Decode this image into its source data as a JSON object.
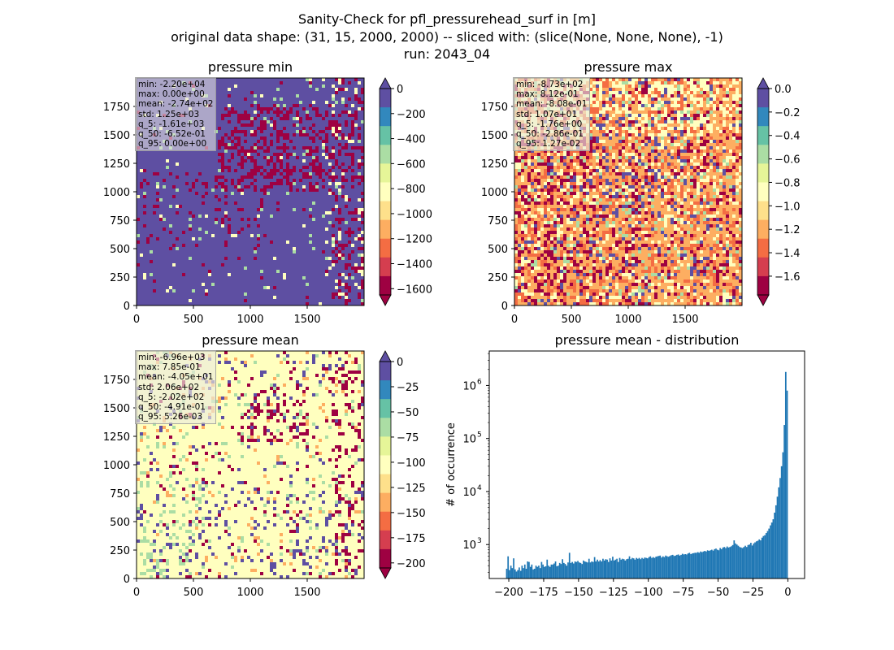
{
  "figure": {
    "title_lines": [
      "Sanity-Check for pfl_pressurehead_surf in [m]",
      "original data shape: (31, 15, 2000, 2000) -- sliced with: (slice(None, None, None), -1)",
      "run: 2043_04"
    ]
  },
  "colors": {
    "spectral": [
      "#5e4fa2",
      "#3288bd",
      "#66c2a5",
      "#abdda4",
      "#e6f598",
      "#ffffbf",
      "#fee08b",
      "#fdae61",
      "#f46d43",
      "#d53e4f",
      "#9e0142"
    ],
    "hist_bar": "#1f77b4"
  },
  "chart_data": [
    {
      "type": "heatmap",
      "title": "pressure min",
      "xlim": [
        0,
        2000
      ],
      "ylim": [
        0,
        2000
      ],
      "x_ticks": [
        "0",
        "500",
        "1000",
        "1500"
      ],
      "y_ticks": [
        "0",
        "250",
        "500",
        "750",
        "1000",
        "1250",
        "1500",
        "1750"
      ],
      "colorbar": {
        "range": [
          -1650,
          0
        ],
        "ticks": [
          "0",
          "−200",
          "−400",
          "−600",
          "−800",
          "−1000",
          "−1200",
          "−1400",
          "−1600"
        ],
        "tick_values": [
          0,
          -200,
          -400,
          -600,
          -800,
          -1000,
          -1200,
          -1400,
          -1600
        ],
        "extend": "both"
      },
      "stats": [
        "min: -2.20e+04",
        "max: 0.00e+00",
        "mean: -2.74e+02",
        "std: 1.25e+03",
        "q_5: -1.61e+03",
        "q_50: -6.52e-01",
        "q_95: 0.00e+00"
      ],
      "dominant_color": "#5e4fa2"
    },
    {
      "type": "heatmap",
      "title": "pressure max",
      "xlim": [
        0,
        2000
      ],
      "ylim": [
        0,
        2000
      ],
      "x_ticks": [
        "0",
        "500",
        "1000",
        "1500"
      ],
      "y_ticks": [
        "0",
        "250",
        "500",
        "750",
        "1000",
        "1250",
        "1500",
        "1750"
      ],
      "colorbar": {
        "range": [
          -1.76,
          0.0
        ],
        "ticks": [
          "0.0",
          "−0.2",
          "−0.4",
          "−0.6",
          "−0.8",
          "−1.0",
          "−1.2",
          "−1.4",
          "−1.6"
        ],
        "tick_values": [
          0,
          -0.2,
          -0.4,
          -0.6,
          -0.8,
          -1.0,
          -1.2,
          -1.4,
          -1.6
        ],
        "extend": "both"
      },
      "stats": [
        "min: -8.73e+02",
        "max: 8.12e-01",
        "mean: -8.08e-01",
        "std: 1.07e+01",
        "q_5: -1.76e+00",
        "q_50: -2.86e-01",
        "q_95: 1.27e-02"
      ],
      "dominant_color": "#f46d43"
    },
    {
      "type": "heatmap",
      "title": "pressure mean",
      "xlim": [
        0,
        2000
      ],
      "ylim": [
        0,
        2000
      ],
      "x_ticks": [
        "0",
        "500",
        "1000",
        "1500"
      ],
      "y_ticks": [
        "0",
        "250",
        "500",
        "750",
        "1000",
        "1250",
        "1500",
        "1750"
      ],
      "colorbar": {
        "range": [
          -205,
          0
        ],
        "ticks": [
          "0",
          "−25",
          "−50",
          "−75",
          "−100",
          "−125",
          "−150",
          "−175",
          "−200"
        ],
        "tick_values": [
          0,
          -25,
          -50,
          -75,
          -100,
          -125,
          -150,
          -175,
          -200
        ],
        "extend": "both"
      },
      "stats": [
        "min: -6.96e+03",
        "max: 7.85e-01",
        "mean: -4.05e+01",
        "std: 2.06e+02",
        "q_5: -2.02e+02",
        "q_50: -4.91e-01",
        "q_95: 5.26e-03"
      ],
      "dominant_color": "#ffffbf"
    },
    {
      "type": "bar",
      "title": "pressure mean - distribution",
      "ylabel": "# of occurrence",
      "xlim": [
        -214,
        12
      ],
      "ylim_log10": [
        2.36,
        6.65
      ],
      "y_scale": "log",
      "x_ticks": [
        "−200",
        "−175",
        "−150",
        "−125",
        "−100",
        "−75",
        "−50",
        "−25",
        "0"
      ],
      "x_tick_values": [
        -200,
        -175,
        -150,
        -125,
        -100,
        -75,
        -50,
        -25,
        0
      ],
      "y_ticks": [
        "10",
        "10",
        "10",
        "10"
      ],
      "y_tick_exponents": [
        "3",
        "4",
        "5",
        "6"
      ],
      "y_tick_values": [
        1000,
        10000,
        100000,
        1000000
      ],
      "bin_range": [
        -202,
        0
      ],
      "bin_width": 1.0,
      "counts": [
        350,
        600,
        330,
        400,
        360,
        550,
        340,
        310,
        330,
        370,
        320,
        400,
        360,
        420,
        350,
        480,
        470,
        380,
        420,
        340,
        350,
        400,
        380,
        400,
        360,
        470,
        420,
        380,
        390,
        520,
        400,
        380,
        420,
        420,
        440,
        480,
        390,
        400,
        450,
        430,
        530,
        450,
        430,
        400,
        460,
        700,
        450,
        470,
        440,
        480,
        470,
        490,
        460,
        450,
        430,
        500,
        480,
        470,
        460,
        540,
        460,
        480,
        470,
        580,
        480,
        520,
        480,
        510,
        480,
        540,
        500,
        530,
        520,
        470,
        550,
        500,
        590,
        500,
        520,
        540,
        470,
        560,
        520,
        540,
        530,
        500,
        530,
        540,
        600,
        530,
        560,
        550,
        520,
        560,
        540,
        560,
        530,
        560,
        540,
        570,
        560,
        550,
        580,
        600,
        560,
        580,
        560,
        590,
        600,
        610,
        620,
        570,
        600,
        580,
        620,
        600,
        590,
        610,
        630,
        640,
        610,
        620,
        640,
        650,
        620,
        640,
        670,
        650,
        660,
        650,
        680,
        700,
        660,
        680,
        690,
        700,
        700,
        720,
        700,
        740,
        720,
        740,
        760,
        740,
        780,
        760,
        780,
        800,
        770,
        820,
        840,
        800,
        780,
        860,
        820,
        880,
        900,
        860,
        920,
        880,
        900,
        930,
        980,
        1200,
        1050,
        1000,
        950,
        900,
        880,
        860,
        900,
        950,
        900,
        980,
        1000,
        1080,
        960,
        1050,
        1100,
        1150,
        1180,
        1250,
        1200,
        1350,
        1450,
        1500,
        1650,
        1800,
        2000,
        2300,
        2600,
        3000,
        4000,
        5500,
        8000,
        12000,
        18000,
        30000,
        55000,
        180000,
        1800000,
        800000
      ]
    }
  ]
}
